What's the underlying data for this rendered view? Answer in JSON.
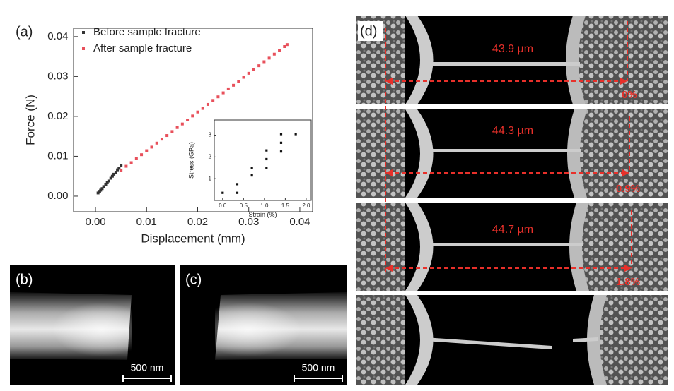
{
  "chart_data": [
    {
      "type": "scatter",
      "x_label": "Displacement (mm)",
      "y_label": "Force (N)",
      "legend": "upper left",
      "xlim": [
        -0.0043,
        0.0425
      ],
      "ylim": [
        -0.0039,
        0.0421
      ],
      "xticks": [
        {
          "value": 0,
          "label": "0.00"
        },
        {
          "value": 0.01,
          "label": "0.01"
        },
        {
          "value": 0.02,
          "label": "0.02"
        },
        {
          "value": 0.03,
          "label": "0.03"
        },
        {
          "value": 0.04,
          "label": "0.04"
        }
      ],
      "yticks": [
        {
          "value": 0,
          "label": "0.00"
        },
        {
          "value": 0.01,
          "label": "0.01"
        },
        {
          "value": 0.02,
          "label": "0.02"
        },
        {
          "value": 0.03,
          "label": "0.03"
        },
        {
          "value": 0.04,
          "label": "0.04"
        }
      ],
      "series": [
        {
          "name": "Before sample fracture",
          "color": "#333333",
          "x": [
            0.0005,
            0.0008,
            0.001,
            0.0013,
            0.0016,
            0.002,
            0.0023,
            0.0026,
            0.003,
            0.0033,
            0.0036,
            0.004,
            0.0043,
            0.0046,
            0.005
          ],
          "values": [
            0.0008,
            0.0012,
            0.0015,
            0.0019,
            0.0024,
            0.003,
            0.0035,
            0.0038,
            0.0045,
            0.005,
            0.0055,
            0.006,
            0.0066,
            0.007,
            0.0077
          ]
        },
        {
          "name": "After sample fracture",
          "color": "#e8505b",
          "x": [
            0.005,
            0.006,
            0.007,
            0.008,
            0.009,
            0.01,
            0.011,
            0.012,
            0.013,
            0.014,
            0.015,
            0.016,
            0.017,
            0.018,
            0.019,
            0.02,
            0.021,
            0.022,
            0.023,
            0.024,
            0.025,
            0.026,
            0.027,
            0.028,
            0.029,
            0.03,
            0.031,
            0.032,
            0.033,
            0.034,
            0.035,
            0.036,
            0.037,
            0.0375
          ],
          "values": [
            0.0065,
            0.0075,
            0.0084,
            0.0094,
            0.0104,
            0.0114,
            0.0123,
            0.0133,
            0.0143,
            0.0152,
            0.0162,
            0.0172,
            0.0181,
            0.0191,
            0.0201,
            0.0211,
            0.022,
            0.023,
            0.024,
            0.0249,
            0.0259,
            0.0269,
            0.0278,
            0.0288,
            0.0298,
            0.0308,
            0.0317,
            0.0327,
            0.0337,
            0.0346,
            0.0356,
            0.0366,
            0.0375,
            0.038
          ]
        }
      ]
    },
    {
      "type": "scatter",
      "x_label": "Strain (%)",
      "y_label": "Stress (GPa)",
      "xlim": [
        -0.2,
        2.12
      ],
      "ylim": [
        0,
        3.7
      ],
      "xticks": [
        {
          "value": 0,
          "label": "0.0"
        },
        {
          "value": 0.5,
          "label": "0.5"
        },
        {
          "value": 1,
          "label": "1.0"
        },
        {
          "value": 1.5,
          "label": "1.5"
        },
        {
          "value": 2,
          "label": "2.0"
        }
      ],
      "yticks": [
        1,
        2,
        3
      ],
      "series": [
        {
          "color": "#111111",
          "x": [
            0,
            0.35,
            0.35,
            0.7,
            0.7,
            1.05,
            1.05,
            1.05,
            1.4,
            1.4,
            1.4,
            1.75
          ],
          "values": [
            0.35,
            0.35,
            0.75,
            1.15,
            1.5,
            1.5,
            1.9,
            2.3,
            2.25,
            2.65,
            3.05,
            3.05
          ]
        }
      ]
    }
  ],
  "panels": {
    "a": "(a)",
    "b": "(b)",
    "c": "(c)",
    "d": "(d)",
    "scale_b": "500 nm",
    "scale_c": "500 nm",
    "lengths": [
      "43.9 µm",
      "44.3 µm",
      "44.7 µm"
    ],
    "strains": [
      "0%",
      "0.9%",
      "1.8%"
    ]
  }
}
